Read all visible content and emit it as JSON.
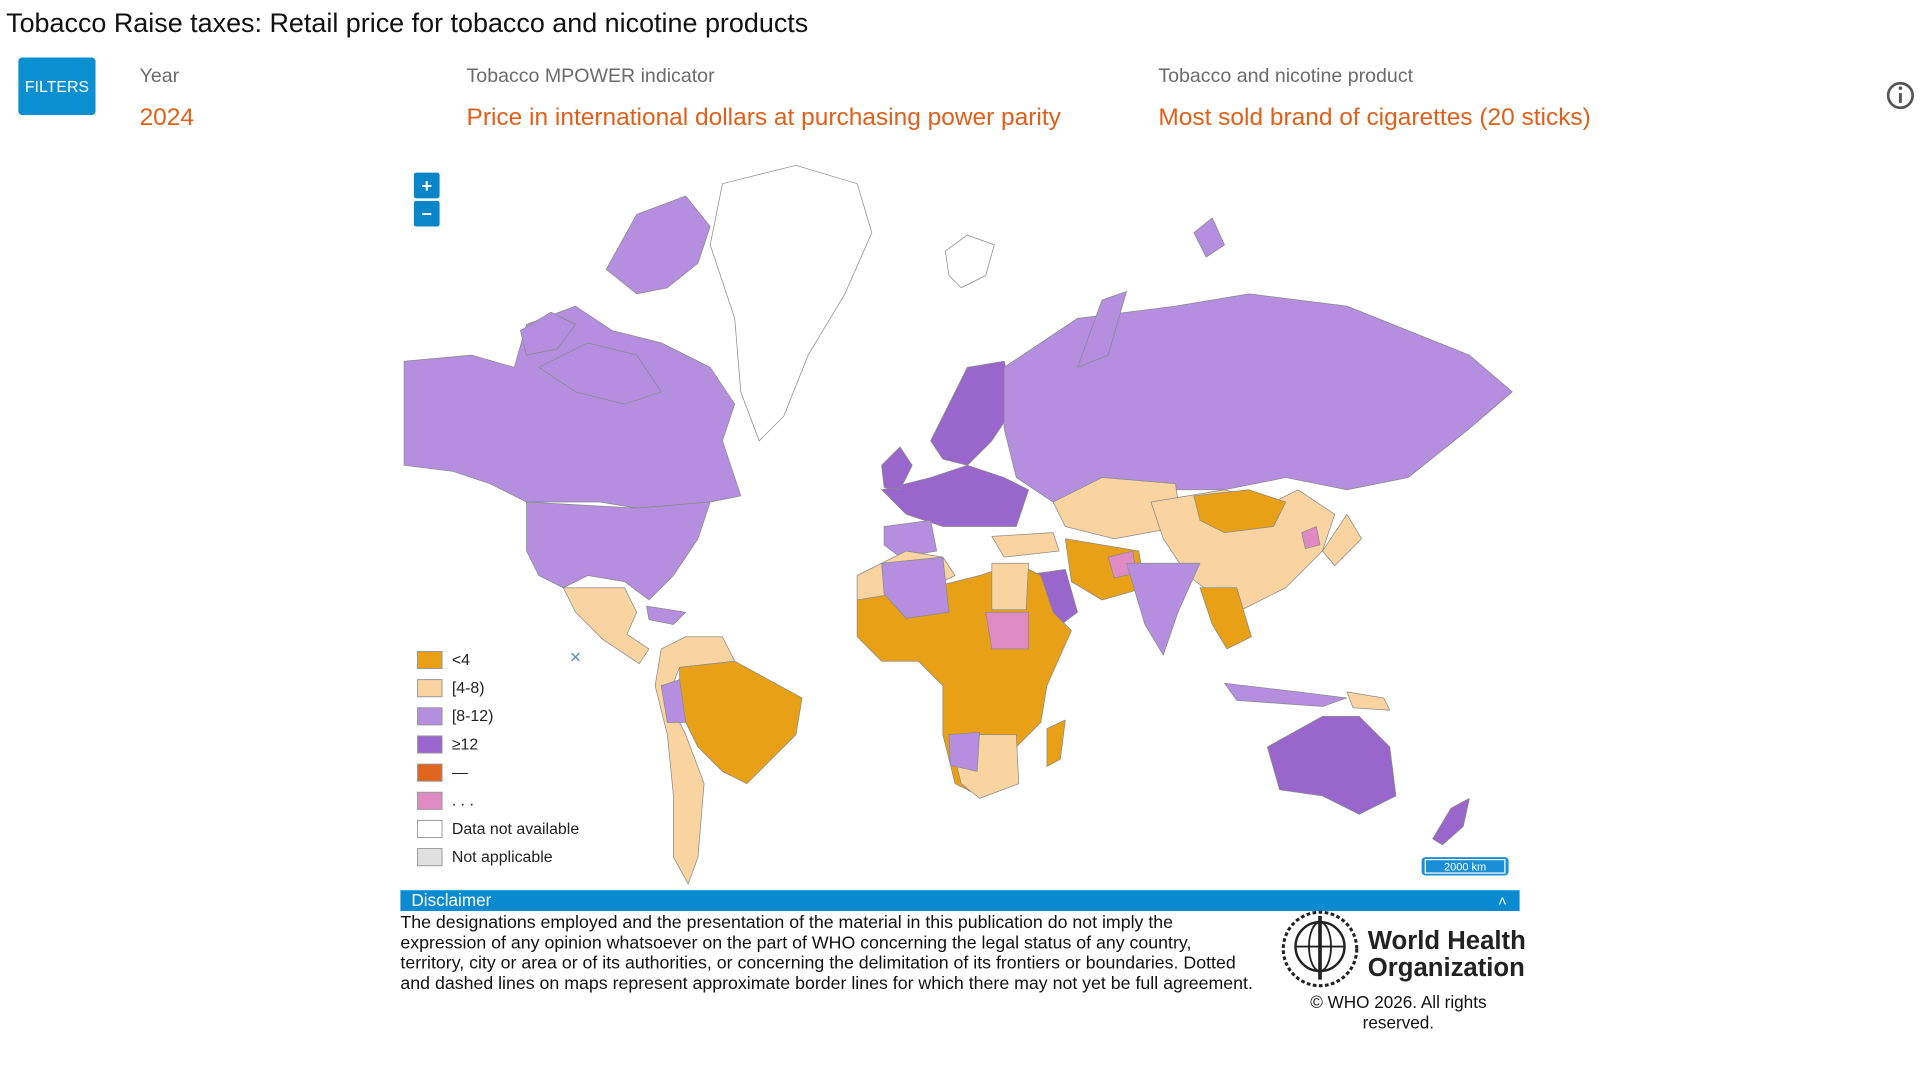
{
  "header": {
    "title": "Tobacco Raise taxes: Retail price for tobacco and nicotine products"
  },
  "filters": {
    "button": "FILTERS",
    "groups": [
      {
        "label": "Year",
        "value": "2024"
      },
      {
        "label": "Tobacco MPOWER indicator",
        "value": "Price in international dollars at purchasing power parity"
      },
      {
        "label": "Tobacco and nicotine product",
        "value": "Most sold brand of cigarettes (20 sticks)"
      }
    ]
  },
  "map": {
    "zoom_in": "+",
    "zoom_out": "–",
    "scale": "2000 km",
    "legend": {
      "close": "×",
      "items": [
        {
          "label": "<4",
          "color": "#e8a016"
        },
        {
          "label": "[4-8)",
          "color": "#f9d3a0"
        },
        {
          "label": "[8-12)",
          "color": "#b58ee0"
        },
        {
          "label": "≥12",
          "color": "#9966cc"
        },
        {
          "label": "—",
          "color": "#e0651e"
        },
        {
          "label": ". . .",
          "color": "#e08ac4"
        },
        {
          "label": "Data not available",
          "color": "#ffffff"
        },
        {
          "label": "Not applicable",
          "color": "#e0e0e0"
        }
      ]
    }
  },
  "disclaimer": {
    "title": "Disclaimer",
    "toggle": "˄",
    "lines": [
      "The designations employed and the presentation of the material in this publication do not imply the",
      "expression of any opinion whatsoever on the part of WHO concerning the legal status of any country,",
      "territory, city or area or of its authorities, or concerning the delimitation of its frontiers or boundaries. Dotted",
      "and dashed lines on maps represent approximate border lines for which there may not yet be full agreement."
    ]
  },
  "footer": {
    "logo": [
      "World Health",
      "Organization"
    ],
    "copyright": [
      "© WHO 2026. All rights",
      "reserved."
    ]
  }
}
